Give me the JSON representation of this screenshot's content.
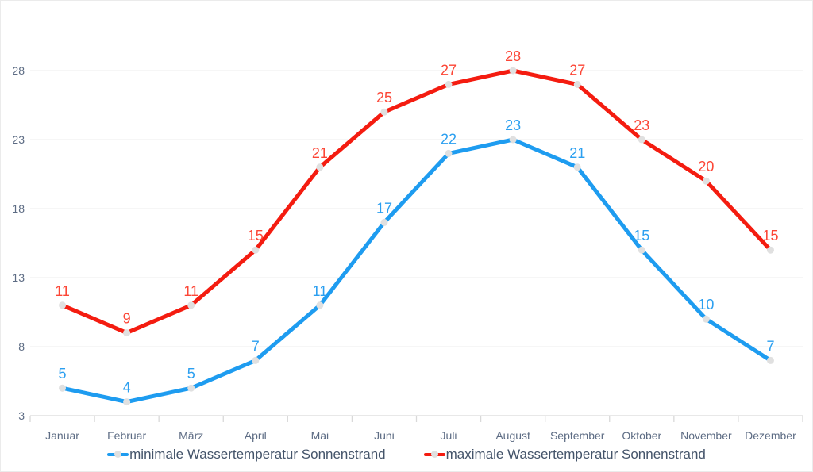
{
  "chart_data": {
    "type": "line",
    "categories": [
      "Januar",
      "Februar",
      "März",
      "April",
      "Mai",
      "Juni",
      "Juli",
      "August",
      "September",
      "Oktober",
      "November",
      "Dezember"
    ],
    "series": [
      {
        "name": "minimale Wassertemperatur Sonnenstrand",
        "color": "#1E9CF0",
        "label_color": "#2B9FF0",
        "values": [
          5,
          4,
          5,
          7,
          11,
          17,
          22,
          23,
          21,
          15,
          10,
          7
        ]
      },
      {
        "name": "maximale Wassertemperatur Sonnenstrand",
        "color": "#F41C10",
        "label_color": "#FC4636",
        "values": [
          11,
          9,
          11,
          15,
          21,
          25,
          27,
          28,
          27,
          23,
          20,
          15
        ]
      }
    ],
    "y_axis": {
      "min": 3,
      "max": 28,
      "step": 5,
      "tick_labels": [
        "3",
        "8",
        "13",
        "18",
        "23",
        "28"
      ]
    },
    "x_axis": {
      "tick_marks": true
    },
    "grid": true,
    "legend_position": "bottom",
    "title": "",
    "colors": {
      "marker": "#E0E0E0",
      "gridline": "#F1F1F1",
      "axis_line": "#D9D9D9",
      "axis_label": "#5D6C84",
      "legend_text": "#44546A"
    }
  }
}
